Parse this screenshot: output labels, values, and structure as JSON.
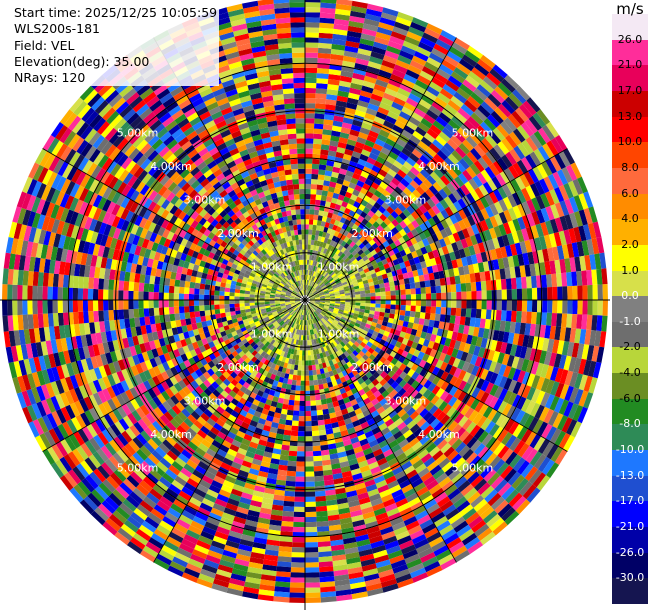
{
  "info": {
    "start_time": "Start time: 2025/12/25 10:05:59",
    "instrument": "WLS200s-181",
    "field": "Field: VEL",
    "elevation": "Elevation(deg): 35.00",
    "nrays": "NRays: 120"
  },
  "colorbar": {
    "unit": "m/s",
    "labels": [
      "26.0",
      "21.0",
      "17.0",
      "13.0",
      "10.0",
      "8.0",
      "6.0",
      "4.0",
      "2.0",
      "1.0",
      "0.0",
      "-1.0",
      "-2.0",
      "-4.0",
      "-6.0",
      "-8.0",
      "-10.0",
      "-13.0",
      "-17.0",
      "-21.0",
      "-26.0",
      "-30.0"
    ],
    "colors": [
      "#f4e9f4",
      "#ff2d9a",
      "#e8005a",
      "#cc0000",
      "#ff0000",
      "#ff4500",
      "#ff6a3c",
      "#ff8c00",
      "#ffb000",
      "#ffff00",
      "#d7e04a",
      "#808080",
      "#6e6e6e",
      "#b8d63a",
      "#6b8e23",
      "#228b22",
      "#2e8b57",
      "#1e78ff",
      "#1f4fd0",
      "#0000ff",
      "#0000a8",
      "#000066",
      "#151550"
    ]
  },
  "chart_data": {
    "type": "heatmap",
    "projection": "polar PPI",
    "field": "VEL",
    "units": "m/s",
    "nrays": 120,
    "range_ring_labels": [
      "1.00km",
      "2.00km",
      "3.00km",
      "4.00km",
      "5.00km"
    ],
    "range_rings_km": [
      1,
      2,
      3,
      4,
      5
    ],
    "max_range_km": 6.4,
    "color_levels": [
      -30.0,
      -26.0,
      -21.0,
      -17.0,
      -13.0,
      -10.0,
      -8.0,
      -6.0,
      -4.0,
      -2.0,
      -1.0,
      0.0,
      1.0,
      2.0,
      4.0,
      6.0,
      8.0,
      10.0,
      13.0,
      17.0,
      21.0,
      26.0
    ],
    "pattern": "near-range returns (< ~1.2 km) mostly between -2.0 and 4.0 m/s; beyond ~1.5 km values are noisy across the full -30.0 to 26.0 m/s range"
  }
}
